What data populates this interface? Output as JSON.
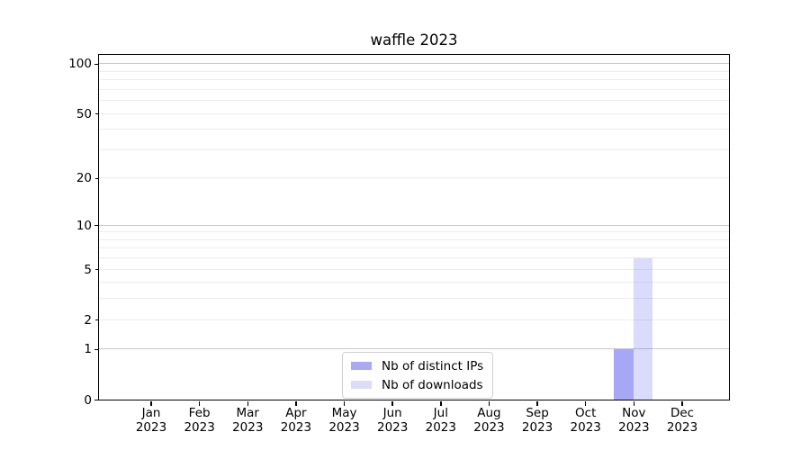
{
  "chart_data": {
    "type": "bar",
    "title": "waffle 2023",
    "categories": [
      "Jan",
      "Feb",
      "Mar",
      "Apr",
      "May",
      "Jun",
      "Jul",
      "Aug",
      "Sep",
      "Oct",
      "Nov",
      "Dec"
    ],
    "year_label": "2023",
    "series": [
      {
        "name": "Nb of distinct IPs",
        "swatch_color": "#a9a9f5",
        "fill_color": "rgba(86,86,236,0.52)",
        "values": [
          0,
          0,
          0,
          0,
          0,
          0,
          0,
          0,
          0,
          0,
          1,
          0
        ]
      },
      {
        "name": "Nb of downloads",
        "swatch_color": "#dcdcf7",
        "fill_color": "rgba(86,86,236,0.21)",
        "values": [
          0,
          0,
          0,
          0,
          0,
          0,
          0,
          0,
          0,
          0,
          6,
          0
        ]
      }
    ],
    "yscale": "log1p",
    "ylim": [
      0,
      113
    ],
    "yticks": [
      {
        "value": 0,
        "label": "0",
        "major": true
      },
      {
        "value": 1,
        "label": "1",
        "major": true
      },
      {
        "value": 2,
        "label": "2",
        "major": false
      },
      {
        "value": 5,
        "label": "5",
        "major": false
      },
      {
        "value": 10,
        "label": "10",
        "major": true
      },
      {
        "value": 20,
        "label": "20",
        "major": false
      },
      {
        "value": 50,
        "label": "50",
        "major": false
      },
      {
        "value": 100,
        "label": "100",
        "major": true
      }
    ],
    "grid": {
      "major_values": [
        1,
        10,
        100
      ],
      "minor_values": [
        2,
        3,
        4,
        5,
        6,
        7,
        8,
        9,
        20,
        30,
        40,
        50,
        60,
        70,
        80,
        90
      ],
      "major_color": "#c8c8c8",
      "minor_color": "#ececec"
    },
    "legend": {
      "location": "lower center",
      "entries": [
        "Nb of distinct IPs",
        "Nb of downloads"
      ]
    },
    "axes_color": "#000000",
    "background_color": "#ffffff"
  }
}
